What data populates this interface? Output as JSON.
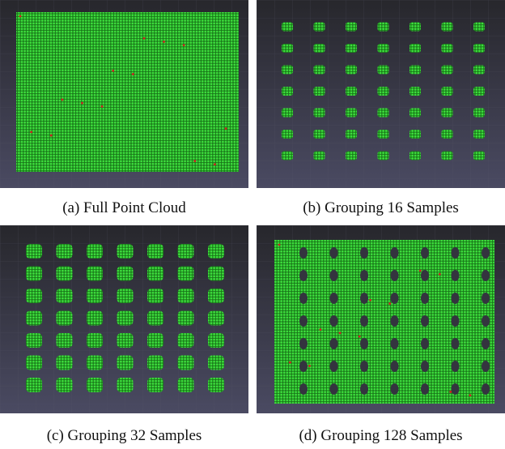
{
  "figure": {
    "panels": [
      {
        "caption": "(a) Full Point Cloud"
      },
      {
        "caption": "(b) Grouping 16 Samples"
      },
      {
        "caption": "(c) Grouping 32 Samples"
      },
      {
        "caption": "(d) Grouping 128 Samples"
      }
    ]
  }
}
